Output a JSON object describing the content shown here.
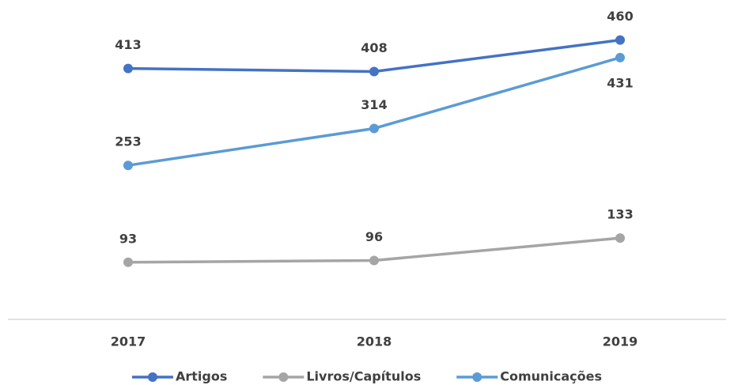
{
  "chart_data": {
    "type": "line",
    "categories": [
      "2017",
      "2018",
      "2019"
    ],
    "series": [
      {
        "name": "Artigos",
        "color": "#4472c4",
        "values": [
          413,
          408,
          460
        ]
      },
      {
        "name": "Livros/Capítulos",
        "color": "#a5a5a5",
        "values": [
          93,
          96,
          133
        ]
      },
      {
        "name": "Comunicações",
        "color": "#5b9bd5",
        "values": [
          253,
          314,
          431
        ]
      }
    ],
    "ylim": [
      0,
      500
    ],
    "legend": "bottom"
  }
}
